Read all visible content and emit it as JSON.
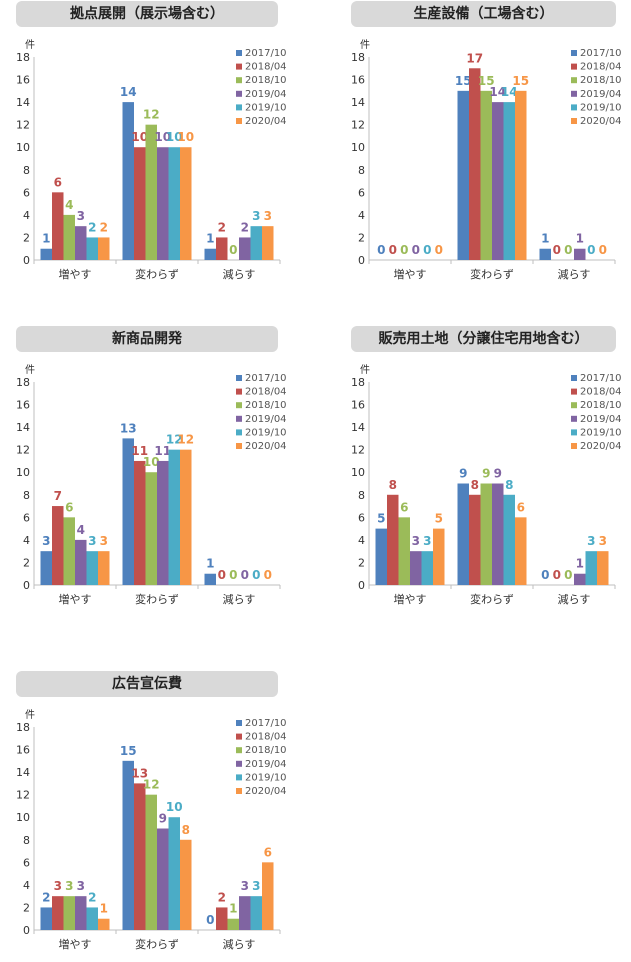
{
  "colors": [
    "#4f81bd",
    "#c0504d",
    "#9bbb59",
    "#8064a2",
    "#4bacc6",
    "#f79646"
  ],
  "legend": [
    "2017/10",
    "2018/04",
    "2018/10",
    "2019/04",
    "2019/10",
    "2020/04"
  ],
  "unit_label": "件",
  "chart_data": [
    {
      "type": "bar",
      "title": "拠点展開（展示場含む）",
      "categories": [
        "増やす",
        "変わらず",
        "減らす"
      ],
      "ylim": [
        0,
        18
      ],
      "yticks": [
        0,
        2,
        4,
        6,
        8,
        10,
        12,
        14,
        16,
        18
      ],
      "series": [
        {
          "name": "2017/10",
          "values": [
            1,
            14,
            1
          ]
        },
        {
          "name": "2018/04",
          "values": [
            6,
            10,
            2
          ]
        },
        {
          "name": "2018/10",
          "values": [
            4,
            12,
            0
          ]
        },
        {
          "name": "2019/04",
          "values": [
            3,
            10,
            2
          ]
        },
        {
          "name": "2019/10",
          "values": [
            2,
            10,
            3
          ]
        },
        {
          "name": "2020/04",
          "values": [
            2,
            10,
            3
          ]
        }
      ]
    },
    {
      "type": "bar",
      "title": "生産設備（工場含む）",
      "categories": [
        "増やす",
        "変わらず",
        "減らす"
      ],
      "ylim": [
        0,
        18
      ],
      "yticks": [
        0,
        2,
        4,
        6,
        8,
        10,
        12,
        14,
        16,
        18
      ],
      "series": [
        {
          "name": "2017/10",
          "values": [
            0,
            15,
            1
          ]
        },
        {
          "name": "2018/04",
          "values": [
            0,
            17,
            0
          ]
        },
        {
          "name": "2018/10",
          "values": [
            0,
            15,
            0
          ]
        },
        {
          "name": "2019/04",
          "values": [
            0,
            14,
            1
          ]
        },
        {
          "name": "2019/10",
          "values": [
            0,
            14,
            0
          ]
        },
        {
          "name": "2020/04",
          "values": [
            0,
            15,
            0
          ]
        }
      ]
    },
    {
      "type": "bar",
      "title": "新商品開発",
      "categories": [
        "増やす",
        "変わらず",
        "減らす"
      ],
      "ylim": [
        0,
        18
      ],
      "yticks": [
        0,
        2,
        4,
        6,
        8,
        10,
        12,
        14,
        16,
        18
      ],
      "series": [
        {
          "name": "2017/10",
          "values": [
            3,
            13,
            1
          ]
        },
        {
          "name": "2018/04",
          "values": [
            7,
            11,
            0
          ]
        },
        {
          "name": "2018/10",
          "values": [
            6,
            10,
            0
          ]
        },
        {
          "name": "2019/04",
          "values": [
            4,
            11,
            0
          ]
        },
        {
          "name": "2019/10",
          "values": [
            3,
            12,
            0
          ]
        },
        {
          "name": "2020/04",
          "values": [
            3,
            12,
            0
          ]
        }
      ]
    },
    {
      "type": "bar",
      "title": "販売用土地（分譲住宅用地含む）",
      "categories": [
        "増やす",
        "変わらず",
        "減らす"
      ],
      "ylim": [
        0,
        18
      ],
      "yticks": [
        0,
        2,
        4,
        6,
        8,
        10,
        12,
        14,
        16,
        18
      ],
      "series": [
        {
          "name": "2017/10",
          "values": [
            5,
            9,
            0
          ]
        },
        {
          "name": "2018/04",
          "values": [
            8,
            8,
            0
          ]
        },
        {
          "name": "2018/10",
          "values": [
            6,
            9,
            0
          ]
        },
        {
          "name": "2019/04",
          "values": [
            3,
            9,
            1
          ]
        },
        {
          "name": "2019/10",
          "values": [
            3,
            8,
            3
          ]
        },
        {
          "name": "2020/04",
          "values": [
            5,
            6,
            3
          ]
        }
      ]
    },
    {
      "type": "bar",
      "title": "広告宣伝費",
      "categories": [
        "増やす",
        "変わらず",
        "減らす"
      ],
      "ylim": [
        0,
        18
      ],
      "yticks": [
        0,
        2,
        4,
        6,
        8,
        10,
        12,
        14,
        16,
        18
      ],
      "series": [
        {
          "name": "2017/10",
          "values": [
            2,
            15,
            0
          ]
        },
        {
          "name": "2018/04",
          "values": [
            3,
            13,
            2
          ]
        },
        {
          "name": "2018/10",
          "values": [
            3,
            12,
            1
          ]
        },
        {
          "name": "2019/04",
          "values": [
            3,
            9,
            3
          ]
        },
        {
          "name": "2019/10",
          "values": [
            2,
            10,
            3
          ]
        },
        {
          "name": "2020/04",
          "values": [
            1,
            8,
            6
          ]
        }
      ]
    }
  ]
}
